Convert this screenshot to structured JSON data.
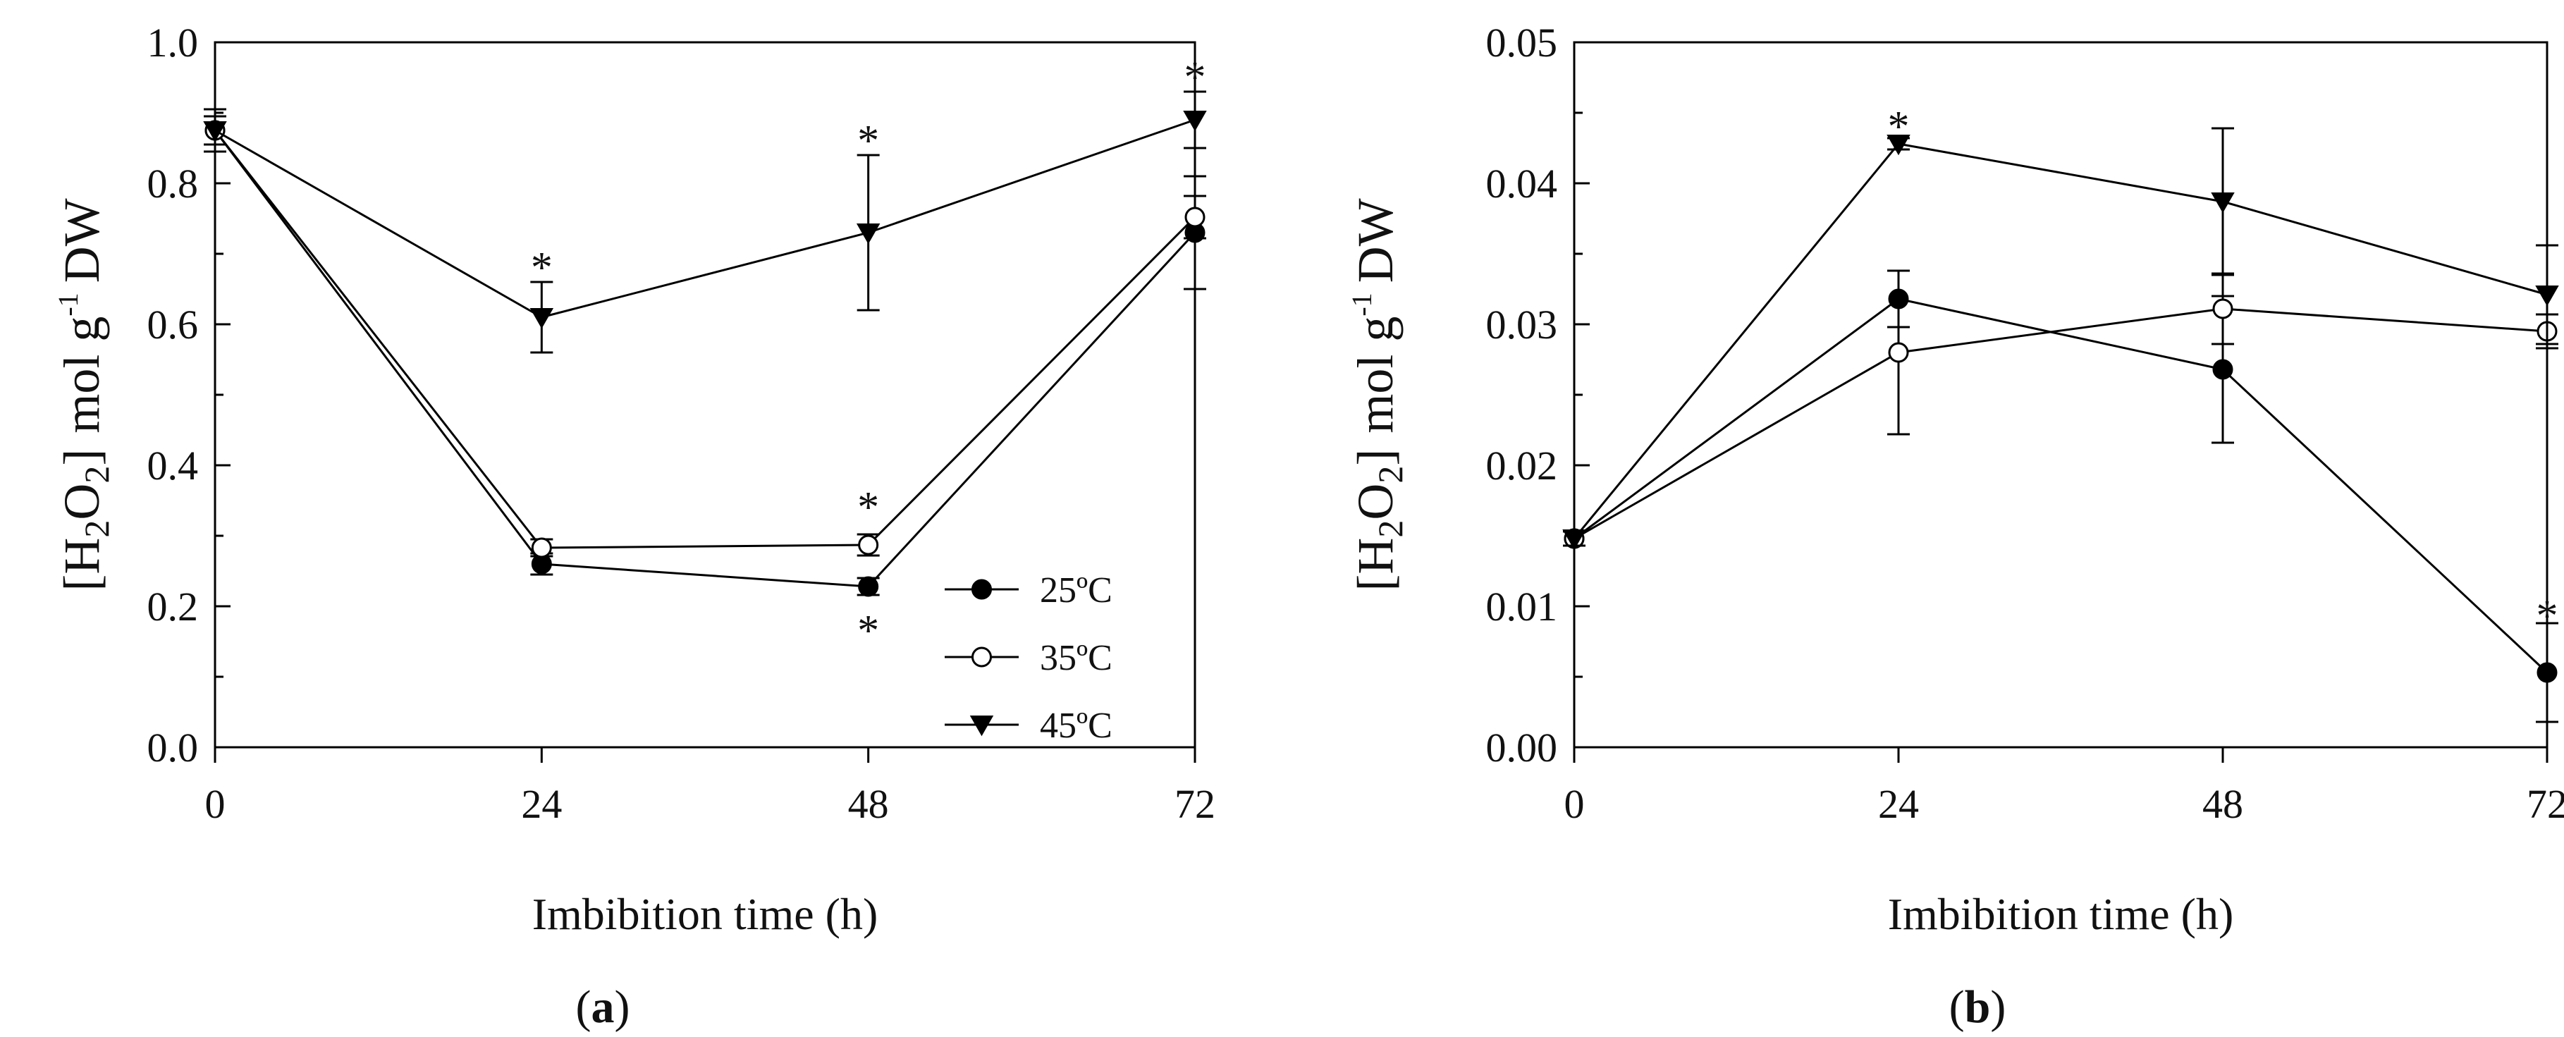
{
  "figure": {
    "panels": [
      {
        "label": "a",
        "label_open": "(",
        "label_close": ")",
        "ylabel_open": "[H",
        "ylabel_sub": "2",
        "ylabel_mid": "O",
        "ylabel_sub2": "2",
        "ylabel_close": "]",
        "ylabel_unit_pre": "mol g",
        "ylabel_unit_sup": "-1",
        "ylabel_unit_post": "DW",
        "xlabel": "Imbibition time (h)"
      },
      {
        "label": "b",
        "label_open": "(",
        "label_close": ")",
        "ylabel_open": "[H",
        "ylabel_sub": "2",
        "ylabel_mid": "O",
        "ylabel_sub2": "2",
        "ylabel_close": "]",
        "ylabel_unit_pre": "mol g",
        "ylabel_unit_sup": "-1",
        "ylabel_unit_post": "DW",
        "xlabel": "Imbibition time (h)"
      }
    ]
  },
  "chart_data": [
    {
      "type": "line",
      "panel": "a",
      "xlabel": "Imbibition time (h)",
      "ylabel": "[H2O2] mol g-1 DW",
      "x": [
        0,
        24,
        48,
        72
      ],
      "xticks": [
        "0",
        "24",
        "48",
        "72"
      ],
      "xlim": [
        0,
        72
      ],
      "ylim": [
        0,
        1.0
      ],
      "yticks": [
        "0.0",
        "0.2",
        "0.4",
        "0.6",
        "0.8",
        "1.0"
      ],
      "ytick_values": [
        0,
        0.2,
        0.4,
        0.6,
        0.8,
        1.0
      ],
      "legend": {
        "placement": "lower-right"
      },
      "series": [
        {
          "name": "25ºC",
          "marker": "filled-circle",
          "values": [
            0.875,
            0.26,
            0.228,
            0.73
          ],
          "errors": [
            0.02,
            0.015,
            0.012,
            0.08
          ]
        },
        {
          "name": "35ºC",
          "marker": "open-circle",
          "values": [
            0.875,
            0.283,
            0.287,
            0.752
          ],
          "errors": [
            0.02,
            0.012,
            0.015,
            0.03
          ]
        },
        {
          "name": "45ºC",
          "marker": "filled-triangle-down",
          "values": [
            0.875,
            0.61,
            0.73,
            0.89
          ],
          "errors": [
            0.03,
            0.05,
            0.11,
            0.04
          ]
        }
      ],
      "annotations": [
        {
          "text": "*",
          "x": 24,
          "y": 0.69
        },
        {
          "text": "*",
          "x": 48,
          "y": 0.87
        },
        {
          "text": "*",
          "x": 72,
          "y": 0.96
        },
        {
          "text": "*",
          "x": 48,
          "y": 0.35
        },
        {
          "text": "*",
          "x": 48,
          "y": 0.175
        }
      ]
    },
    {
      "type": "line",
      "panel": "b",
      "xlabel": "Imbibition time (h)",
      "ylabel": "[H2O2] mol g-1 DW",
      "x": [
        0,
        24,
        48,
        72
      ],
      "xticks": [
        "0",
        "24",
        "48",
        "72"
      ],
      "xlim": [
        0,
        72
      ],
      "ylim": [
        0,
        0.05
      ],
      "yticks": [
        "0.00",
        "0.01",
        "0.02",
        "0.03",
        "0.04",
        "0.05"
      ],
      "ytick_values": [
        0,
        0.01,
        0.02,
        0.03,
        0.04,
        0.05
      ],
      "series": [
        {
          "name": "25ºC",
          "marker": "filled-circle",
          "values": [
            0.0148,
            0.0318,
            0.0268,
            0.0053
          ],
          "errors": [
            0.0005,
            0.002,
            0.0052,
            0.0035
          ]
        },
        {
          "name": "35ºC",
          "marker": "open-circle",
          "values": [
            0.0148,
            0.028,
            0.0311,
            0.0295
          ],
          "errors": [
            0.0005,
            0.0058,
            0.0025,
            0.0012
          ]
        },
        {
          "name": "45ºC",
          "marker": "filled-triangle-down",
          "values": [
            0.0148,
            0.0428,
            0.0387,
            0.0321
          ],
          "errors": [
            0.0005,
            0.0004,
            0.0052,
            0.0035
          ]
        }
      ],
      "annotations": [
        {
          "text": "*",
          "x": 24,
          "y": 0.0445
        },
        {
          "text": "*",
          "x": 72,
          "y": 0.0098
        }
      ]
    }
  ]
}
